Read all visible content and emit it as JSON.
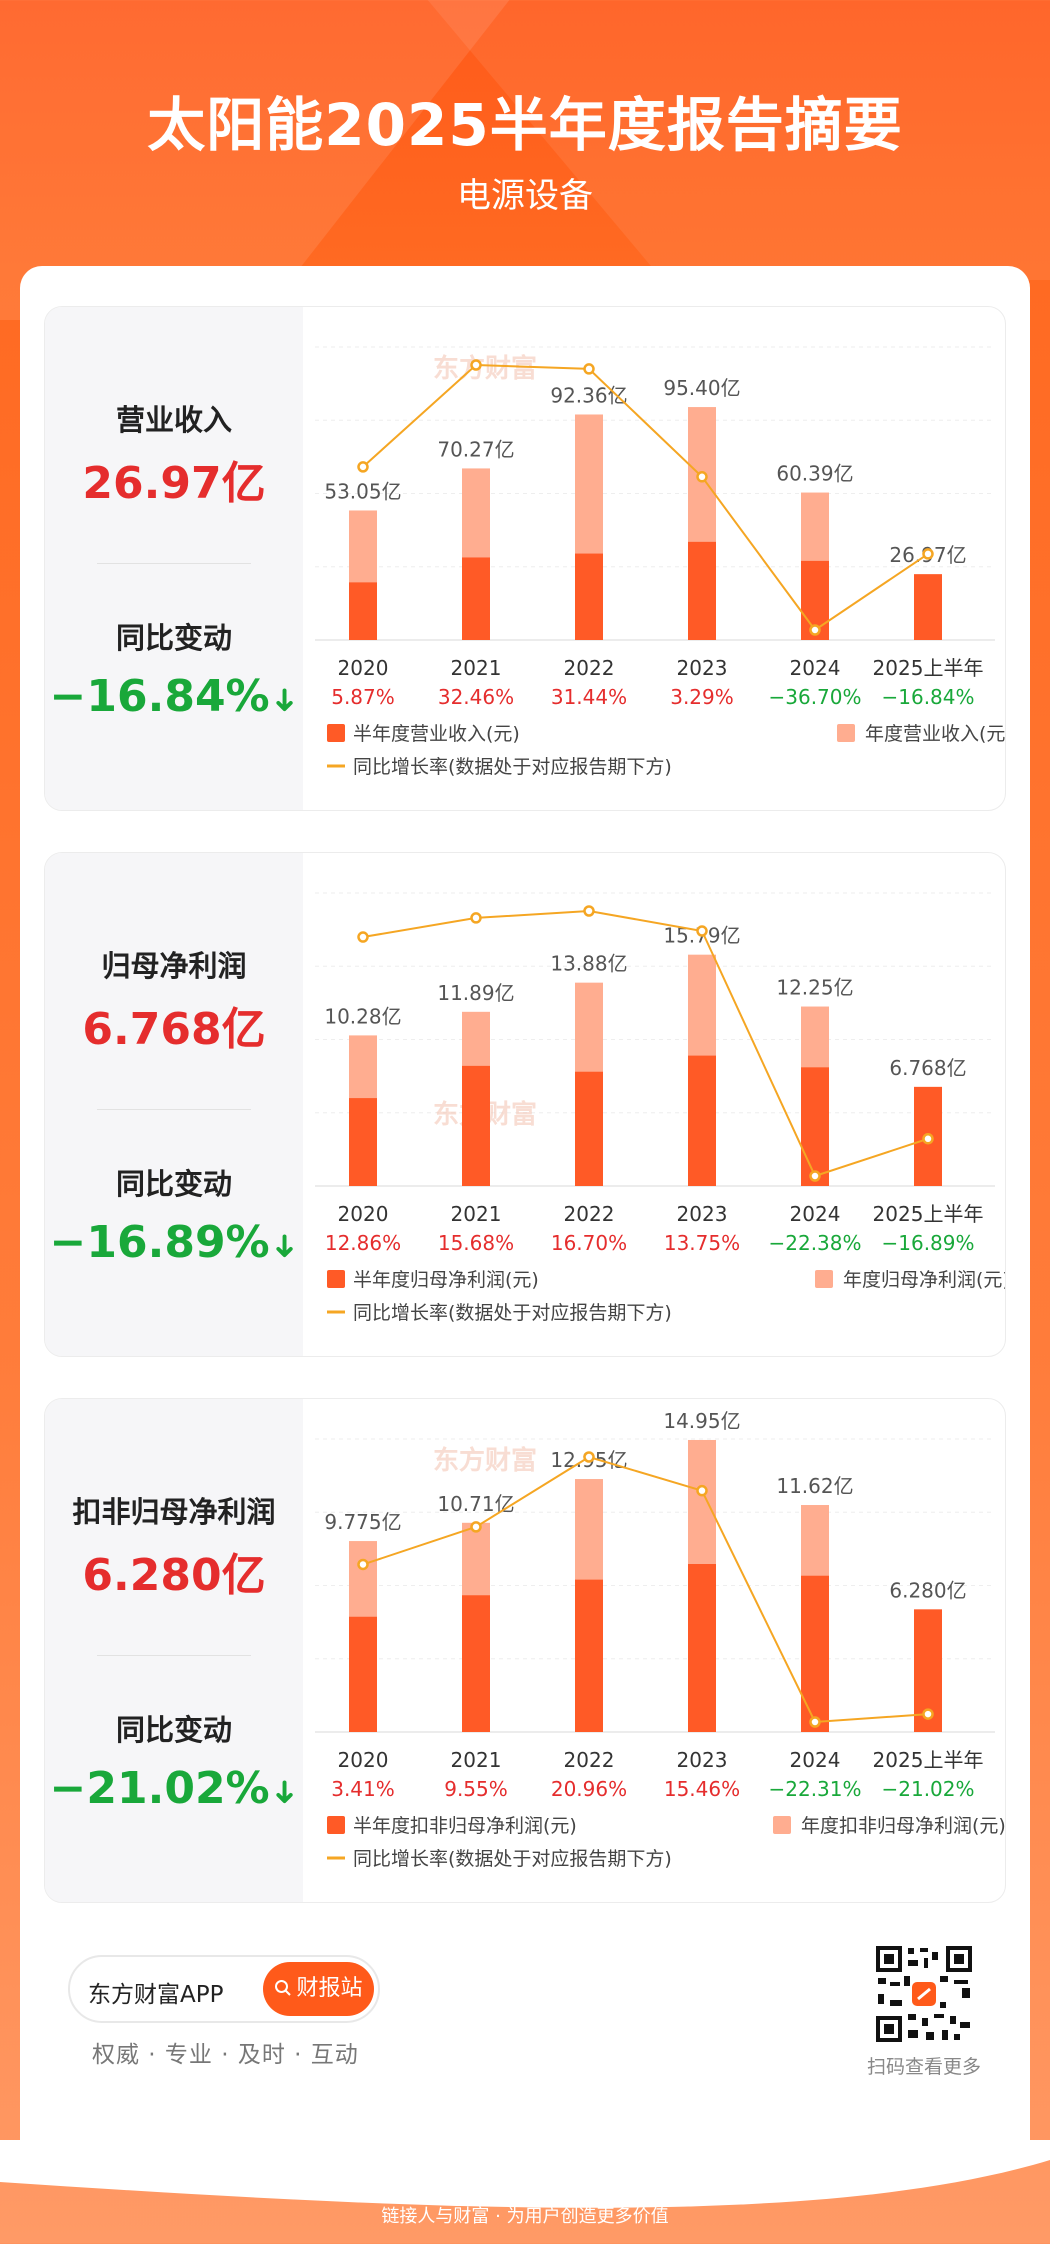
{
  "header": {
    "title": "太阳能2025半年度报告摘要",
    "subtitle": "电源设备"
  },
  "colors": {
    "accent": "#ff5a1a",
    "half_bar": "#ff5a26",
    "annual_bar": "#ffad90",
    "line": "#f5a623",
    "positive": "#e52d2d",
    "negative": "#19a83a"
  },
  "watermark": "东方财富",
  "panels": [
    {
      "kpi_label": "营业收入",
      "kpi_value": "26.97亿",
      "change_label": "同比变动",
      "change_value": "−16.84%",
      "legend": {
        "half": "半年度营业收入(元)",
        "annual": "年度营业收入(元)",
        "line": "同比增长率(数据处于对应报告期下方)"
      }
    },
    {
      "kpi_label": "归母净利润",
      "kpi_value": "6.768亿",
      "change_label": "同比变动",
      "change_value": "−16.89%",
      "legend": {
        "half": "半年度归母净利润(元)",
        "annual": "年度归母净利润(元)",
        "line": "同比增长率(数据处于对应报告期下方)"
      }
    },
    {
      "kpi_label": "扣非归母净利润",
      "kpi_value": "6.280亿",
      "change_label": "同比变动",
      "change_value": "−21.02%",
      "legend": {
        "half": "半年度扣非归母净利润(元)",
        "annual": "年度扣非归母净利润(元)",
        "line": "同比增长率(数据处于对应报告期下方)"
      }
    }
  ],
  "chart_data": [
    {
      "type": "bar",
      "categories": [
        "2020",
        "2021",
        "2022",
        "2023",
        "2024",
        "2025上半年"
      ],
      "annual_values": [
        53.05,
        70.27,
        92.36,
        95.4,
        60.39,
        null
      ],
      "annual_labels": [
        "53.05亿",
        "70.27亿",
        "92.36亿",
        "95.40亿",
        "60.39亿",
        ""
      ],
      "half_values": [
        23.6,
        33.8,
        35.4,
        40.2,
        32.4,
        26.97
      ],
      "half_labels": [
        "",
        "",
        "",
        "",
        "",
        "26.97亿"
      ],
      "growth_labels": [
        "5.87%",
        "32.46%",
        "31.44%",
        "3.29%",
        "−36.70%",
        "−16.84%"
      ],
      "growth_values": [
        5.87,
        32.46,
        31.44,
        3.29,
        -36.7,
        -16.84
      ],
      "ylim": [
        0,
        120
      ]
    },
    {
      "type": "bar",
      "categories": [
        "2020",
        "2021",
        "2022",
        "2023",
        "2024",
        "2025上半年"
      ],
      "annual_values": [
        10.28,
        11.89,
        13.88,
        15.79,
        12.25,
        null
      ],
      "annual_labels": [
        "10.28亿",
        "11.89亿",
        "13.88亿",
        "15.79亿",
        "12.25亿",
        ""
      ],
      "half_values": [
        6.0,
        8.2,
        7.8,
        8.9,
        8.1,
        6.768
      ],
      "half_labels": [
        "",
        "",
        "",
        "",
        "",
        "6.768亿"
      ],
      "growth_labels": [
        "12.86%",
        "15.68%",
        "16.70%",
        "13.75%",
        "−22.38%",
        "−16.89%"
      ],
      "growth_values": [
        12.86,
        15.68,
        16.7,
        13.75,
        -22.38,
        -16.89
      ],
      "ylim": [
        0,
        20
      ]
    },
    {
      "type": "bar",
      "categories": [
        "2020",
        "2021",
        "2022",
        "2023",
        "2024",
        "2025上半年"
      ],
      "annual_values": [
        9.775,
        10.71,
        12.95,
        14.95,
        11.62,
        null
      ],
      "annual_labels": [
        "9.775亿",
        "10.71亿",
        "12.95亿",
        "14.95亿",
        "11.62亿",
        ""
      ],
      "half_values": [
        5.9,
        7.0,
        7.8,
        8.6,
        8.0,
        6.28
      ],
      "half_labels": [
        "",
        "",
        "",
        "",
        "",
        "6.280亿"
      ],
      "growth_labels": [
        "3.41%",
        "9.55%",
        "20.96%",
        "15.46%",
        "−22.31%",
        "−21.02%"
      ],
      "growth_values": [
        3.41,
        9.55,
        20.96,
        15.46,
        -22.31,
        -21.02
      ],
      "ylim": [
        0,
        15
      ]
    }
  ],
  "footer": {
    "app_name": "东方财富APP",
    "button_label": "财报站",
    "slogan": "权威 · 专业 · 及时 · 互动",
    "qr_label": "扫码查看更多",
    "bottom_text": "链接人与财富 · 为用户创造更多价值"
  }
}
